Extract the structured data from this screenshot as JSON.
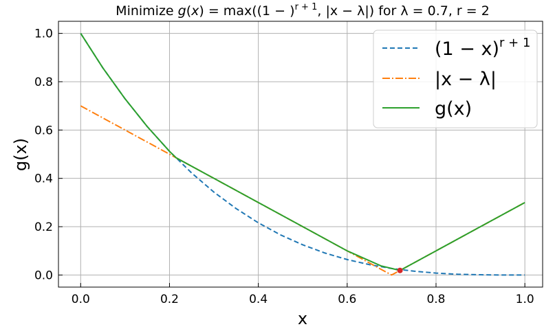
{
  "chart_data": {
    "type": "line",
    "title": {
      "prefix": "Minimize ",
      "g": "g",
      "x": "x",
      "eq": " = max",
      "open": "(",
      "base": "(1 − ",
      "close_base": ")",
      "exp": "r + 1",
      "comma": ", ",
      "abs": "|x − λ|",
      "close": ")",
      "params": " for λ = 0.7, r = 2"
    },
    "xlabel": "x",
    "ylabel": "g(x)",
    "xlim": [
      -0.05,
      1.04
    ],
    "ylim": [
      -0.05,
      1.05
    ],
    "xticks": [
      "0.0",
      "0.2",
      "0.4",
      "0.6",
      "0.8",
      "1.0"
    ],
    "xtick_values": [
      0.0,
      0.2,
      0.4,
      0.6,
      0.8,
      1.0
    ],
    "yticks": [
      "0.0",
      "0.2",
      "0.4",
      "0.6",
      "0.8",
      "1.0"
    ],
    "ytick_values": [
      0.0,
      0.2,
      0.4,
      0.6,
      0.8,
      1.0
    ],
    "grid": true,
    "legend_position": "top-right",
    "params": {
      "lambda": 0.7,
      "r": 2
    },
    "series": [
      {
        "name": "(1 − x)^(r+1)",
        "legend_base": "(1 − x)",
        "legend_exp": "r + 1",
        "style": "dashed",
        "color": "#1f77b4",
        "x": [
          0.0,
          0.05,
          0.1,
          0.15,
          0.2,
          0.25,
          0.3,
          0.35,
          0.4,
          0.45,
          0.5,
          0.55,
          0.6,
          0.65,
          0.7,
          0.75,
          0.8,
          0.85,
          0.9,
          0.95,
          1.0
        ],
        "y": [
          1.0,
          0.857,
          0.729,
          0.614,
          0.512,
          0.422,
          0.343,
          0.275,
          0.216,
          0.166,
          0.125,
          0.091,
          0.064,
          0.043,
          0.027,
          0.016,
          0.008,
          0.003,
          0.001,
          0.0,
          0.0
        ]
      },
      {
        "name": "|x − λ|",
        "legend_label": "|x − λ|",
        "style": "dashdot",
        "color": "#ff7f0e",
        "x": [
          0.0,
          0.7,
          1.0
        ],
        "y": [
          0.7,
          0.0,
          0.3
        ]
      },
      {
        "name": "g(x)",
        "legend_label": "g(x)",
        "style": "solid",
        "color": "#2ca02c",
        "x": [
          0.0,
          0.05,
          0.1,
          0.15,
          0.2,
          0.2151,
          0.3,
          0.4,
          0.5,
          0.6,
          0.676,
          0.7189,
          0.8,
          0.9,
          1.0
        ],
        "y": [
          1.0,
          0.857,
          0.729,
          0.614,
          0.512,
          0.4849,
          0.4,
          0.3,
          0.2,
          0.1,
          0.038,
          0.0189,
          0.1,
          0.2,
          0.3
        ]
      }
    ],
    "markers": [
      {
        "x": 0.7189,
        "y": 0.0189,
        "color": "#d62728"
      }
    ]
  }
}
